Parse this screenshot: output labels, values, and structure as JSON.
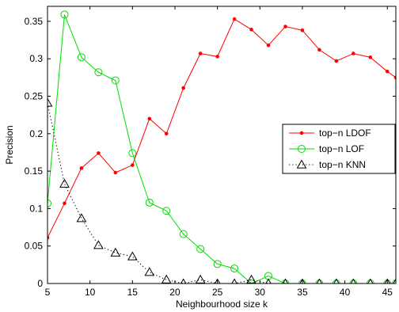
{
  "chart_data": {
    "type": "line",
    "xlabel": "Neighbourhood size k",
    "ylabel": "Precision",
    "xlim": [
      5,
      46
    ],
    "ylim": [
      0,
      0.37
    ],
    "x_ticks": [
      5,
      10,
      15,
      20,
      25,
      30,
      35,
      40,
      45
    ],
    "y_ticks": [
      0,
      0.05,
      0.1,
      0.15,
      0.2,
      0.25,
      0.3,
      0.35
    ],
    "x_tick_labels": [
      "5",
      "10",
      "15",
      "20",
      "25",
      "30",
      "35",
      "40",
      "45"
    ],
    "y_tick_labels": [
      "0",
      "0.05",
      "0.1",
      "0.15",
      "0.2",
      "0.25",
      "0.3",
      "0.35"
    ],
    "legend_position": "right",
    "grid": false,
    "series": [
      {
        "name": "top−n LDOF",
        "color": "#ff0000",
        "marker": "dot",
        "line": "solid",
        "x": [
          5,
          7,
          9,
          11,
          13,
          15,
          17,
          19,
          21,
          23,
          25,
          27,
          29,
          31,
          33,
          35,
          37,
          39,
          41,
          43,
          45,
          46
        ],
        "y": [
          0.061,
          0.107,
          0.154,
          0.174,
          0.148,
          0.158,
          0.22,
          0.2,
          0.261,
          0.307,
          0.303,
          0.353,
          0.339,
          0.318,
          0.343,
          0.338,
          0.312,
          0.297,
          0.307,
          0.302,
          0.283,
          0.275
        ]
      },
      {
        "name": "top−n LOF",
        "color": "#00dd00",
        "marker": "circle",
        "line": "solid",
        "x": [
          5,
          7,
          9,
          11,
          13,
          15,
          17,
          19,
          21,
          23,
          25,
          27,
          29,
          31,
          33,
          35,
          37,
          39,
          41,
          43,
          45,
          46
        ],
        "y": [
          0.107,
          0.359,
          0.302,
          0.282,
          0.271,
          0.174,
          0.108,
          0.097,
          0.066,
          0.046,
          0.026,
          0.02,
          0.0,
          0.01,
          0.0,
          0.0,
          0.0,
          0.0,
          0.0,
          0.0,
          0.0,
          0.0
        ]
      },
      {
        "name": "top−n KNN",
        "color": "#000000",
        "marker": "triangle",
        "line": "dotted",
        "x": [
          5,
          7,
          9,
          11,
          13,
          15,
          17,
          19,
          21,
          23,
          25,
          27,
          29,
          31,
          33,
          35,
          37,
          39,
          41,
          43,
          45,
          46
        ],
        "y": [
          0.241,
          0.133,
          0.087,
          0.051,
          0.041,
          0.036,
          0.015,
          0.005,
          0.0,
          0.005,
          0.0,
          0.0,
          0.005,
          0.0,
          0.0,
          0.0,
          0.0,
          0.0,
          0.0,
          0.0,
          0.0,
          0.0
        ]
      }
    ]
  }
}
